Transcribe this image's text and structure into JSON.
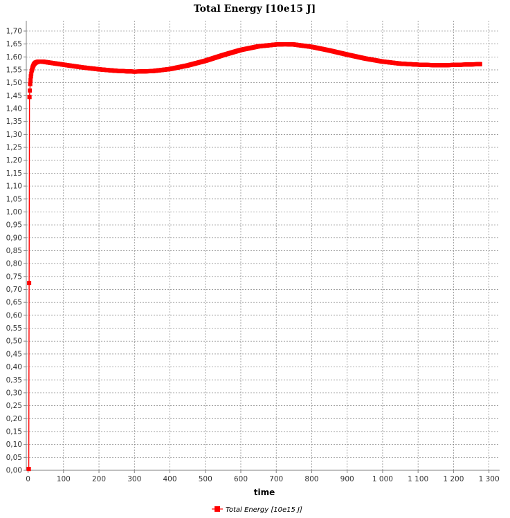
{
  "chart_data": {
    "type": "line",
    "title": "Total Energy [10e15 J]",
    "xlabel": "time",
    "ylabel": "",
    "xlim": [
      -5,
      1330
    ],
    "ylim": [
      0,
      1.74
    ],
    "x_ticks": [
      0,
      100,
      200,
      300,
      400,
      500,
      600,
      700,
      800,
      900,
      1000,
      1100,
      1200,
      1300
    ],
    "x_tick_labels": [
      "0",
      "100",
      "200",
      "300",
      "400",
      "500",
      "600",
      "700",
      "800",
      "900",
      "1 000",
      "1 100",
      "1 200",
      "1 300"
    ],
    "y_ticks": [
      0,
      0.05,
      0.1,
      0.15,
      0.2,
      0.25,
      0.3,
      0.35,
      0.4,
      0.45,
      0.5,
      0.55,
      0.6,
      0.65,
      0.7,
      0.75,
      0.8,
      0.85,
      0.9,
      0.95,
      1.0,
      1.05,
      1.1,
      1.15,
      1.2,
      1.25,
      1.3,
      1.35,
      1.4,
      1.45,
      1.5,
      1.55,
      1.6,
      1.65,
      1.7
    ],
    "y_tick_labels": [
      "0,00",
      "0,05",
      "0,10",
      "0,15",
      "0,20",
      "0,25",
      "0,30",
      "0,35",
      "0,40",
      "0,45",
      "0,50",
      "0,55",
      "0,60",
      "0,65",
      "0,70",
      "0,75",
      "0,80",
      "0,85",
      "0,90",
      "0,95",
      "1,00",
      "1,05",
      "1,10",
      "1,15",
      "1,20",
      "1,25",
      "1,30",
      "1,35",
      "1,40",
      "1,45",
      "1,50",
      "1,55",
      "1,60",
      "1,65",
      "1,70"
    ],
    "grid": true,
    "legend_position": "bottom",
    "series": [
      {
        "name": "Total Energy [10e15 J]",
        "color": "#ff0000",
        "x": [
          2,
          4,
          6,
          8,
          10,
          13,
          16,
          20,
          25,
          30,
          40,
          50,
          75,
          100,
          150,
          200,
          250,
          300,
          350,
          400,
          450,
          500,
          550,
          600,
          650,
          700,
          725,
          750,
          800,
          850,
          900,
          950,
          1000,
          1050,
          1100,
          1150,
          1175,
          1200,
          1250,
          1275
        ],
        "y": [
          0.005,
          1.445,
          1.495,
          1.525,
          1.545,
          1.56,
          1.57,
          1.577,
          1.58,
          1.582,
          1.582,
          1.58,
          1.575,
          1.57,
          1.56,
          1.552,
          1.546,
          1.543,
          1.545,
          1.553,
          1.567,
          1.585,
          1.607,
          1.627,
          1.641,
          1.648,
          1.649,
          1.648,
          1.639,
          1.625,
          1.609,
          1.594,
          1.582,
          1.574,
          1.57,
          1.568,
          1.568,
          1.569,
          1.571,
          1.572
        ]
      }
    ]
  }
}
